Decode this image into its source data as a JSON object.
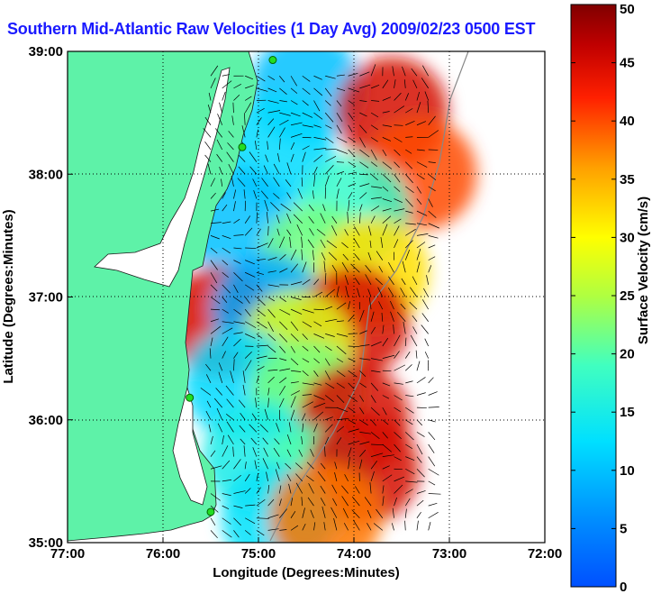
{
  "chart_data": {
    "type": "heatmap",
    "title": "Southern Mid-Atlantic Raw Velocities (1 Day Avg) 2009/02/23 0500 EST",
    "xlabel": "Longitude (Degrees:Minutes)",
    "ylabel": "Latitude (Degrees:Minutes)",
    "colorbar_label": "Surface Velocity (cm/s)",
    "xlim": [
      -77,
      -72
    ],
    "ylim": [
      35,
      39
    ],
    "x_ticks": [
      {
        "value": -77,
        "label": "77:00"
      },
      {
        "value": -76,
        "label": "76:00"
      },
      {
        "value": -75,
        "label": "75:00"
      },
      {
        "value": -74,
        "label": "74:00"
      },
      {
        "value": -73,
        "label": "73:00"
      },
      {
        "value": -72,
        "label": "72:00"
      }
    ],
    "y_ticks": [
      {
        "value": 35,
        "label": "35:00"
      },
      {
        "value": 36,
        "label": "36:00"
      },
      {
        "value": 37,
        "label": "37:00"
      },
      {
        "value": 38,
        "label": "38:00"
      },
      {
        "value": 39,
        "label": "39:00"
      }
    ],
    "colorbar": {
      "range": [
        0,
        50
      ],
      "ticks": [
        0,
        5,
        10,
        15,
        20,
        25,
        30,
        35,
        40,
        45,
        50
      ]
    },
    "grid": "dotted",
    "colors": {
      "land": "#5ef2a8",
      "ocean_blank": "#ffffff",
      "title": "#1a1aff",
      "station": "#22dd22"
    },
    "stations": [
      {
        "lon": -74.85,
        "lat": 38.93
      },
      {
        "lon": -75.17,
        "lat": 38.22
      },
      {
        "lon": -75.72,
        "lat": 36.18
      },
      {
        "lon": -75.5,
        "lat": 35.25
      }
    ],
    "velocity_regions": [
      {
        "lon": -74.5,
        "lat": 38.7,
        "speed": 10
      },
      {
        "lon": -73.6,
        "lat": 38.5,
        "speed": 45
      },
      {
        "lon": -74.8,
        "lat": 38.2,
        "speed": 12
      },
      {
        "lon": -73.3,
        "lat": 38.0,
        "speed": 40
      },
      {
        "lon": -74.0,
        "lat": 37.7,
        "speed": 18
      },
      {
        "lon": -75.2,
        "lat": 37.6,
        "speed": 10
      },
      {
        "lon": -74.4,
        "lat": 37.3,
        "speed": 22
      },
      {
        "lon": -73.8,
        "lat": 37.2,
        "speed": 32
      },
      {
        "lon": -75.4,
        "lat": 36.8,
        "speed": 45
      },
      {
        "lon": -74.9,
        "lat": 36.9,
        "speed": 8
      },
      {
        "lon": -74.0,
        "lat": 36.8,
        "speed": 45
      },
      {
        "lon": -74.6,
        "lat": 36.6,
        "speed": 28
      },
      {
        "lon": -75.2,
        "lat": 36.3,
        "speed": 12
      },
      {
        "lon": -74.5,
        "lat": 36.2,
        "speed": 22
      },
      {
        "lon": -74.0,
        "lat": 36.0,
        "speed": 45
      },
      {
        "lon": -75.0,
        "lat": 35.7,
        "speed": 15
      },
      {
        "lon": -74.4,
        "lat": 35.5,
        "speed": 20
      },
      {
        "lon": -73.9,
        "lat": 35.6,
        "speed": 45
      },
      {
        "lon": -74.8,
        "lat": 35.2,
        "speed": 13
      },
      {
        "lon": -74.3,
        "lat": 35.2,
        "speed": 38
      }
    ]
  }
}
